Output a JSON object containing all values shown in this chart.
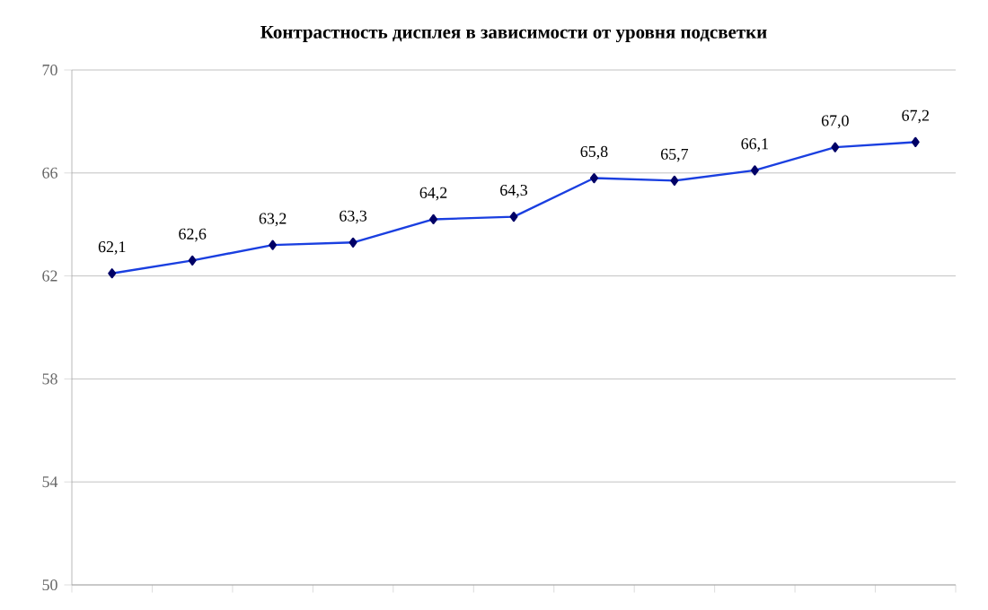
{
  "chart_data": {
    "type": "line",
    "title": "Контрастность дисплея в зависимости от уровня подсветки",
    "categories": [
      null,
      null,
      null,
      null,
      null,
      null,
      null,
      null,
      null,
      null,
      null
    ],
    "series": [
      {
        "color": "#1a3fe0",
        "values": [
          62.1,
          62.6,
          63.2,
          63.3,
          64.2,
          64.3,
          65.8,
          65.7,
          66.1,
          67.0,
          67.2
        ],
        "value_labels": [
          "62,1",
          "62,6",
          "63,2",
          "63,3",
          "64,2",
          "64,3",
          "65,8",
          "65,7",
          "66,1",
          "67,0",
          "67,2"
        ]
      }
    ],
    "ylim": [
      50,
      70
    ],
    "yticks": [
      50,
      54,
      58,
      62,
      66,
      70
    ],
    "grid": "y",
    "marker": "diamond",
    "line_style": "solid"
  }
}
